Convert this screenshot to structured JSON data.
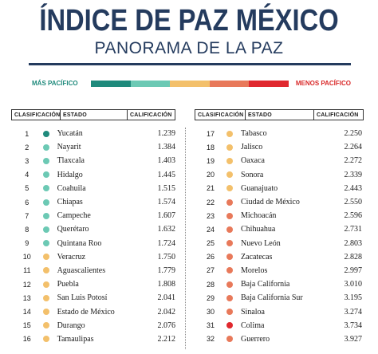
{
  "header": {
    "title": "ÍNDICE DE PAZ MÉXICO",
    "subtitle": "PANORAMA DE LA PAZ"
  },
  "scale": {
    "left_label": "MÁS PACÍFICO",
    "right_label": "MENOS PACÍFICO",
    "colors": [
      "#1f8a7c",
      "#6cc9b4",
      "#f3c06b",
      "#e8795a",
      "#e0282e"
    ]
  },
  "columns": {
    "rank": "CLASIFICACIÓN",
    "state": "ESTADO",
    "score": "CALIFICACIÓN"
  },
  "rows_left": [
    {
      "rank": "1",
      "state": "Yucatán",
      "score": "1.239",
      "color": "#1f8a7c"
    },
    {
      "rank": "2",
      "state": "Nayarit",
      "score": "1.384",
      "color": "#6cc9b4"
    },
    {
      "rank": "3",
      "state": "Tlaxcala",
      "score": "1.403",
      "color": "#6cc9b4"
    },
    {
      "rank": "4",
      "state": "Hidalgo",
      "score": "1.445",
      "color": "#6cc9b4"
    },
    {
      "rank": "5",
      "state": "Coahuila",
      "score": "1.515",
      "color": "#6cc9b4"
    },
    {
      "rank": "6",
      "state": "Chiapas",
      "score": "1.574",
      "color": "#6cc9b4"
    },
    {
      "rank": "7",
      "state": "Campeche",
      "score": "1.607",
      "color": "#6cc9b4"
    },
    {
      "rank": "8",
      "state": "Querétaro",
      "score": "1.632",
      "color": "#6cc9b4"
    },
    {
      "rank": "9",
      "state": "Quintana Roo",
      "score": "1.724",
      "color": "#6cc9b4"
    },
    {
      "rank": "10",
      "state": "Veracruz",
      "score": "1.750",
      "color": "#f3c06b"
    },
    {
      "rank": "11",
      "state": "Aguascalientes",
      "score": "1.779",
      "color": "#f3c06b"
    },
    {
      "rank": "12",
      "state": "Puebla",
      "score": "1.808",
      "color": "#f3c06b"
    },
    {
      "rank": "13",
      "state": "San Luis Potosí",
      "score": "2.041",
      "color": "#f3c06b"
    },
    {
      "rank": "14",
      "state": "Estado de México",
      "score": "2.042",
      "color": "#f3c06b"
    },
    {
      "rank": "15",
      "state": "Durango",
      "score": "2.076",
      "color": "#f3c06b"
    },
    {
      "rank": "16",
      "state": "Tamaulipas",
      "score": "2.212",
      "color": "#f3c06b"
    }
  ],
  "rows_right": [
    {
      "rank": "17",
      "state": "Tabasco",
      "score": "2.250",
      "color": "#f3c06b"
    },
    {
      "rank": "18",
      "state": "Jalisco",
      "score": "2.264",
      "color": "#f3c06b"
    },
    {
      "rank": "19",
      "state": "Oaxaca",
      "score": "2.272",
      "color": "#f3c06b"
    },
    {
      "rank": "20",
      "state": "Sonora",
      "score": "2.339",
      "color": "#f3c06b"
    },
    {
      "rank": "21",
      "state": "Guanajuato",
      "score": "2.443",
      "color": "#f3c06b"
    },
    {
      "rank": "22",
      "state": "Ciudad de México",
      "score": "2.550",
      "color": "#e8795a"
    },
    {
      "rank": "23",
      "state": "Michoacán",
      "score": "2.596",
      "color": "#e8795a"
    },
    {
      "rank": "24",
      "state": "Chihuahua",
      "score": "2.731",
      "color": "#e8795a"
    },
    {
      "rank": "25",
      "state": "Nuevo León",
      "score": "2.803",
      "color": "#e8795a"
    },
    {
      "rank": "26",
      "state": "Zacatecas",
      "score": "2.828",
      "color": "#e8795a"
    },
    {
      "rank": "27",
      "state": "Morelos",
      "score": "2.997",
      "color": "#e8795a"
    },
    {
      "rank": "28",
      "state": "Baja California",
      "score": "3.010",
      "color": "#e8795a"
    },
    {
      "rank": "29",
      "state": "Baja California Sur",
      "score": "3.195",
      "color": "#e8795a"
    },
    {
      "rank": "30",
      "state": "Sinaloa",
      "score": "3.274",
      "color": "#e8795a"
    },
    {
      "rank": "31",
      "state": "Colima",
      "score": "3.734",
      "color": "#e0282e"
    },
    {
      "rank": "32",
      "state": "Guerrero",
      "score": "3.927",
      "color": "#e8795a"
    }
  ]
}
